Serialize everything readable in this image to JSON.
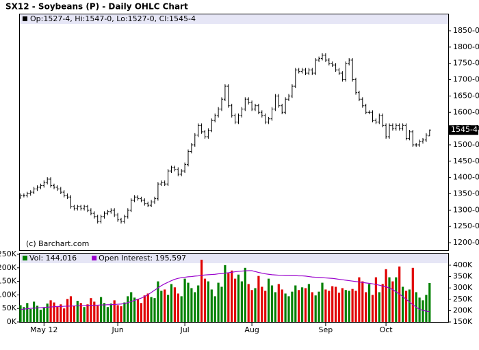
{
  "chart_data": [
    {
      "type": "ohlc",
      "title": "SX12 - Soybeans (P) - Daily OHLC Chart",
      "info": "Op:1527-4, Hi:1547-0, Lo:1527-0, Cl:1545-4",
      "copyright": "(c) Barchart.com",
      "color": "#000000",
      "ylim": [
        1177,
        1871
      ],
      "yticks": [
        {
          "value": 1200,
          "label": "1200-0"
        },
        {
          "value": 1250,
          "label": "1250-0"
        },
        {
          "value": 1300,
          "label": "1300-0"
        },
        {
          "value": 1350,
          "label": "1350-0"
        },
        {
          "value": 1400,
          "label": "1400-0"
        },
        {
          "value": 1450,
          "label": "1450-0"
        },
        {
          "value": 1500,
          "label": "1500-0"
        },
        {
          "value": 1550,
          "label": "1550-0"
        },
        {
          "value": 1600,
          "label": "1600-0"
        },
        {
          "value": 1650,
          "label": "1650-0"
        },
        {
          "value": 1700,
          "label": "1700-0"
        },
        {
          "value": 1750,
          "label": "1750-0"
        },
        {
          "value": 1800,
          "label": "1800-0"
        },
        {
          "value": 1850,
          "label": "1850-0"
        }
      ],
      "last_label": {
        "value": 1545.5,
        "label": "1545-4"
      },
      "open": [
        1340,
        1345,
        1345,
        1350,
        1355,
        1365,
        1370,
        1375,
        1385,
        1395,
        1375,
        1370,
        1365,
        1355,
        1345,
        1340,
        1310,
        1305,
        1310,
        1305,
        1310,
        1300,
        1290,
        1280,
        1265,
        1280,
        1290,
        1295,
        1300,
        1285,
        1270,
        1265,
        1280,
        1300,
        1330,
        1340,
        1335,
        1330,
        1320,
        1315,
        1325,
        1335,
        1380,
        1385,
        1380,
        1420,
        1430,
        1425,
        1410,
        1420,
        1440,
        1480,
        1500,
        1530,
        1560,
        1540,
        1525,
        1545,
        1575,
        1590,
        1610,
        1640,
        1680,
        1620,
        1590,
        1570,
        1590,
        1610,
        1640,
        1630,
        1610,
        1620,
        1600,
        1590,
        1570,
        1580,
        1610,
        1650,
        1620,
        1600,
        1640,
        1650,
        1680,
        1730,
        1725,
        1730,
        1720,
        1730,
        1720,
        1760,
        1765,
        1775,
        1760,
        1750,
        1745,
        1730,
        1720,
        1700,
        1750,
        1760,
        1700,
        1660,
        1640,
        1620,
        1600,
        1600,
        1575,
        1570,
        1590,
        1560,
        1525,
        1560,
        1550,
        1560,
        1550,
        1560,
        1520,
        1540,
        1500,
        1500,
        1510,
        1515,
        1527.5
      ],
      "high": [
        1351,
        1351,
        1356,
        1361,
        1371,
        1376,
        1381,
        1391,
        1401,
        1401,
        1381,
        1376,
        1371,
        1361,
        1351,
        1346,
        1316,
        1316,
        1316,
        1316,
        1316,
        1306,
        1296,
        1286,
        1286,
        1296,
        1301,
        1306,
        1306,
        1291,
        1276,
        1286,
        1306,
        1336,
        1346,
        1346,
        1341,
        1336,
        1326,
        1331,
        1341,
        1386,
        1391,
        1391,
        1426,
        1436,
        1436,
        1431,
        1426,
        1446,
        1486,
        1506,
        1536,
        1566,
        1566,
        1546,
        1551,
        1581,
        1596,
        1616,
        1646,
        1686,
        1686,
        1626,
        1596,
        1596,
        1616,
        1646,
        1646,
        1636,
        1626,
        1626,
        1606,
        1596,
        1586,
        1616,
        1656,
        1656,
        1626,
        1646,
        1656,
        1686,
        1736,
        1736,
        1736,
        1736,
        1736,
        1736,
        1766,
        1771,
        1781,
        1781,
        1766,
        1756,
        1751,
        1736,
        1726,
        1756,
        1766,
        1766,
        1706,
        1666,
        1646,
        1626,
        1606,
        1606,
        1581,
        1596,
        1596,
        1566,
        1566,
        1566,
        1566,
        1566,
        1566,
        1566,
        1546,
        1546,
        1506,
        1516,
        1521,
        1536,
        1547
      ],
      "low": [
        1334,
        1339,
        1339,
        1344,
        1349,
        1359,
        1364,
        1369,
        1379,
        1369,
        1364,
        1359,
        1349,
        1339,
        1334,
        1304,
        1299,
        1299,
        1299,
        1299,
        1294,
        1284,
        1274,
        1259,
        1259,
        1274,
        1284,
        1289,
        1279,
        1264,
        1259,
        1259,
        1274,
        1294,
        1324,
        1329,
        1324,
        1314,
        1309,
        1309,
        1319,
        1329,
        1374,
        1374,
        1374,
        1414,
        1419,
        1404,
        1404,
        1414,
        1434,
        1474,
        1494,
        1524,
        1534,
        1519,
        1519,
        1539,
        1569,
        1584,
        1604,
        1634,
        1614,
        1584,
        1564,
        1564,
        1584,
        1604,
        1624,
        1604,
        1604,
        1594,
        1584,
        1564,
        1564,
        1574,
        1604,
        1614,
        1594,
        1594,
        1634,
        1644,
        1674,
        1719,
        1719,
        1714,
        1714,
        1714,
        1714,
        1754,
        1759,
        1754,
        1744,
        1739,
        1724,
        1714,
        1694,
        1694,
        1744,
        1694,
        1654,
        1634,
        1614,
        1594,
        1594,
        1569,
        1564,
        1564,
        1554,
        1519,
        1519,
        1544,
        1544,
        1544,
        1544,
        1514,
        1514,
        1494,
        1494,
        1494,
        1504,
        1509,
        1527
      ],
      "close": [
        1345,
        1345,
        1350,
        1355,
        1365,
        1370,
        1375,
        1385,
        1395,
        1375,
        1370,
        1365,
        1355,
        1345,
        1340,
        1310,
        1305,
        1310,
        1305,
        1310,
        1300,
        1290,
        1280,
        1265,
        1280,
        1290,
        1295,
        1300,
        1285,
        1270,
        1265,
        1280,
        1300,
        1330,
        1340,
        1335,
        1330,
        1320,
        1315,
        1325,
        1335,
        1380,
        1385,
        1380,
        1420,
        1430,
        1425,
        1410,
        1420,
        1440,
        1480,
        1500,
        1530,
        1560,
        1540,
        1525,
        1545,
        1575,
        1590,
        1610,
        1640,
        1680,
        1620,
        1590,
        1570,
        1590,
        1610,
        1640,
        1630,
        1610,
        1620,
        1600,
        1590,
        1570,
        1580,
        1610,
        1650,
        1620,
        1600,
        1640,
        1650,
        1680,
        1730,
        1725,
        1730,
        1720,
        1730,
        1720,
        1760,
        1765,
        1775,
        1760,
        1750,
        1745,
        1730,
        1720,
        1700,
        1750,
        1760,
        1700,
        1660,
        1640,
        1620,
        1600,
        1600,
        1575,
        1570,
        1590,
        1560,
        1525,
        1560,
        1550,
        1560,
        1550,
        1560,
        1520,
        1540,
        1500,
        1500,
        1510,
        1515,
        1530,
        1545.5
      ]
    },
    {
      "type": "volume",
      "categories": [
        null,
        null,
        null,
        null,
        null,
        null,
        null,
        "May 12",
        null,
        null,
        null,
        null,
        null,
        null,
        null,
        null,
        null,
        null,
        null,
        null,
        null,
        null,
        null,
        null,
        null,
        null,
        null,
        null,
        null,
        "Jun",
        null,
        null,
        null,
        null,
        null,
        null,
        null,
        null,
        null,
        null,
        null,
        null,
        null,
        null,
        null,
        null,
        null,
        null,
        null,
        "Jul",
        null,
        null,
        null,
        null,
        null,
        null,
        null,
        null,
        null,
        null,
        null,
        null,
        null,
        null,
        null,
        null,
        null,
        null,
        null,
        "Aug",
        null,
        null,
        null,
        null,
        null,
        null,
        null,
        null,
        null,
        null,
        null,
        null,
        null,
        null,
        null,
        null,
        null,
        null,
        null,
        null,
        null,
        "Sep",
        null,
        null,
        null,
        null,
        null,
        null,
        null,
        null,
        null,
        null,
        null,
        null,
        null,
        null,
        null,
        null,
        null,
        "Oct",
        null,
        null,
        null,
        null,
        null,
        null,
        null,
        null,
        null,
        null,
        null,
        null,
        null
      ],
      "ylim": [
        0,
        250000
      ],
      "yticks": [
        {
          "value": 0,
          "label": "0K"
        },
        {
          "value": 50000,
          "label": "50K"
        },
        {
          "value": 100000,
          "label": "100K"
        },
        {
          "value": 150000,
          "label": "150K"
        },
        {
          "value": 200000,
          "label": "200K"
        },
        {
          "value": 250000,
          "label": "250K"
        }
      ],
      "y2lim": [
        150000,
        448000
      ],
      "y2ticks": [
        {
          "value": 150000,
          "label": "150K"
        },
        {
          "value": 200000,
          "label": "200K"
        },
        {
          "value": 250000,
          "label": "250K"
        },
        {
          "value": 300000,
          "label": "300K"
        },
        {
          "value": 350000,
          "label": "350K"
        },
        {
          "value": 400000,
          "label": "400K"
        }
      ],
      "series": [
        {
          "name": "Vol: 144,016",
          "type": "bar",
          "color": "#008000",
          "up_color": "#008000",
          "down_color": "#e00000",
          "values": [
            62000,
            55000,
            70000,
            48000,
            75000,
            60000,
            45000,
            52000,
            68000,
            80000,
            72000,
            58000,
            65000,
            50000,
            85000,
            95000,
            60000,
            78000,
            70000,
            55000,
            65000,
            88000,
            75000,
            60000,
            92000,
            70000,
            55000,
            68000,
            80000,
            62000,
            58000,
            72000,
            95000,
            110000,
            90000,
            85000,
            70000,
            98000,
            105000,
            92000,
            88000,
            150000,
            115000,
            120000,
            100000,
            140000,
            128000,
            105000,
            95000,
            160000,
            145000,
            125000,
            110000,
            135000,
            230000,
            160000,
            150000,
            120000,
            95000,
            145000,
            130000,
            210000,
            180000,
            190000,
            160000,
            175000,
            150000,
            200000,
            140000,
            118000,
            125000,
            170000,
            130000,
            115000,
            160000,
            135000,
            110000,
            140000,
            120000,
            105000,
            95000,
            112000,
            135000,
            118000,
            128000,
            125000,
            140000,
            110000,
            98000,
            112000,
            145000,
            120000,
            115000,
            132000,
            130000,
            108000,
            125000,
            118000,
            115000,
            122000,
            115000,
            165000,
            150000,
            110000,
            140000,
            100000,
            165000,
            110000,
            140000,
            195000,
            165000,
            150000,
            165000,
            205000,
            130000,
            115000,
            120000,
            200000,
            110000,
            90000,
            80000,
            100000,
            144016
          ]
        },
        {
          "name": "Open Interest: 195,597",
          "type": "line",
          "axis": "y2",
          "color": "#9900cc",
          "values": [
            205000,
            207000,
            208000,
            210000,
            211000,
            212000,
            213000,
            214000,
            215000,
            216000,
            217000,
            218000,
            218000,
            219000,
            220000,
            220000,
            221000,
            221000,
            222000,
            222000,
            223000,
            223000,
            224000,
            224000,
            225000,
            225000,
            226000,
            226000,
            227000,
            228000,
            229000,
            231000,
            235000,
            240000,
            245000,
            250000,
            255000,
            262000,
            270000,
            280000,
            290000,
            300000,
            310000,
            318000,
            325000,
            332000,
            338000,
            342000,
            345000,
            347000,
            349000,
            350000,
            352000,
            353000,
            355000,
            357000,
            358000,
            359000,
            360000,
            362000,
            363000,
            365000,
            367000,
            369000,
            371000,
            373000,
            374000,
            375000,
            376000,
            376000,
            372000,
            368000,
            365000,
            362000,
            360000,
            358000,
            357000,
            356000,
            356000,
            355000,
            355000,
            354000,
            354000,
            353000,
            353000,
            352000,
            350000,
            348000,
            347000,
            346000,
            345000,
            344000,
            343000,
            342000,
            340000,
            338000,
            336000,
            334000,
            332000,
            330000,
            328000,
            326000,
            324000,
            322000,
            320000,
            318000,
            315000,
            312000,
            308000,
            305000,
            300000,
            292000,
            283000,
            273000,
            262000,
            250000,
            238000,
            226000,
            215000,
            206000,
            201000,
            198000,
            195597
          ]
        }
      ]
    }
  ]
}
